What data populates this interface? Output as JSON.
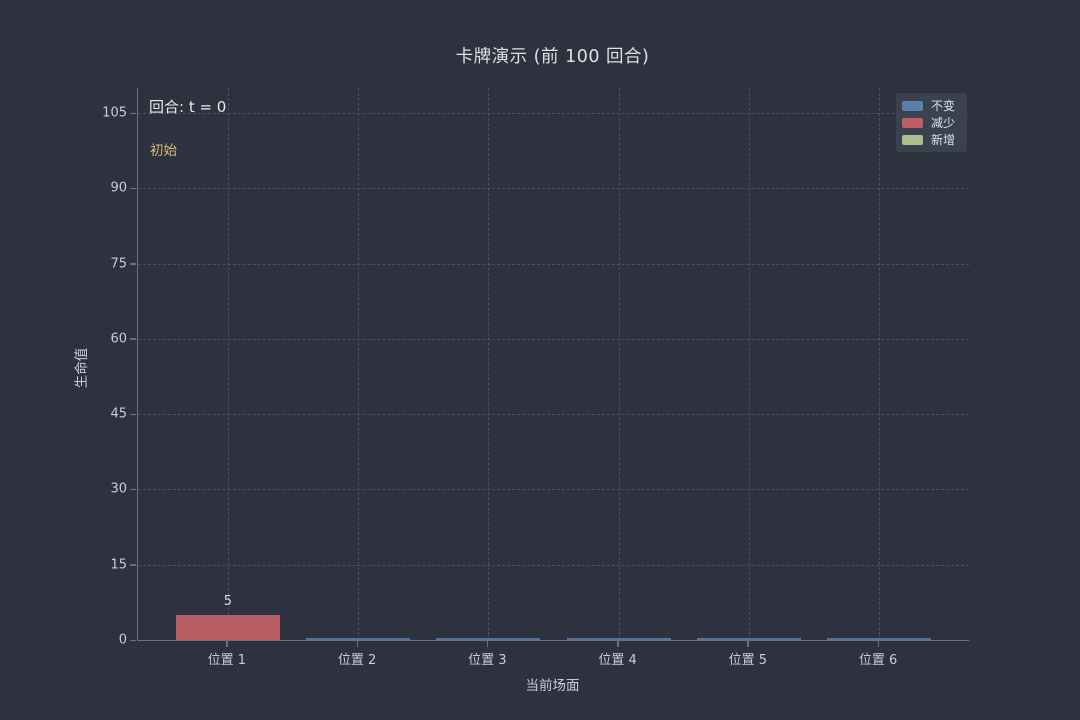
{
  "colors": {
    "background": "#2d323e",
    "grid": "#4a5160",
    "spine": "#6a7180",
    "text_primary": "#dde1e8",
    "tick_text": "#c7ccd5",
    "annotation_phase": "#d9bd7e",
    "zero_bar_edge": "#567099",
    "legend_background": "#3c4352"
  },
  "chart_data": {
    "type": "bar",
    "title": "卡牌演示 (前 100 回合)",
    "xlabel": "当前场面",
    "ylabel": "生命值",
    "categories": [
      "位置 1",
      "位置 2",
      "位置 3",
      "位置 4",
      "位置 5",
      "位置 6"
    ],
    "values": [
      5,
      0,
      0,
      0,
      0,
      0
    ],
    "bar_colors": [
      "#b75d64",
      "#567099",
      "#567099",
      "#567099",
      "#567099",
      "#567099"
    ],
    "bar_value_labels": [
      "5",
      "",
      "",
      "",
      "",
      ""
    ],
    "yticks": [
      0,
      15,
      30,
      45,
      60,
      75,
      90,
      105
    ],
    "ylim": [
      0,
      110
    ],
    "grid": "dashed",
    "legend": {
      "position": "top-right",
      "entries": [
        {
          "label": "不变",
          "color": "#5b80aa"
        },
        {
          "label": "减少",
          "color": "#c05e66"
        },
        {
          "label": "新增",
          "color": "#a7c28b"
        }
      ]
    },
    "annotations": [
      {
        "id": "round",
        "text": "回合: t = 0",
        "color": "#e8eaee"
      },
      {
        "id": "phase",
        "text": "初始",
        "color": "#d9bd7e"
      }
    ]
  }
}
